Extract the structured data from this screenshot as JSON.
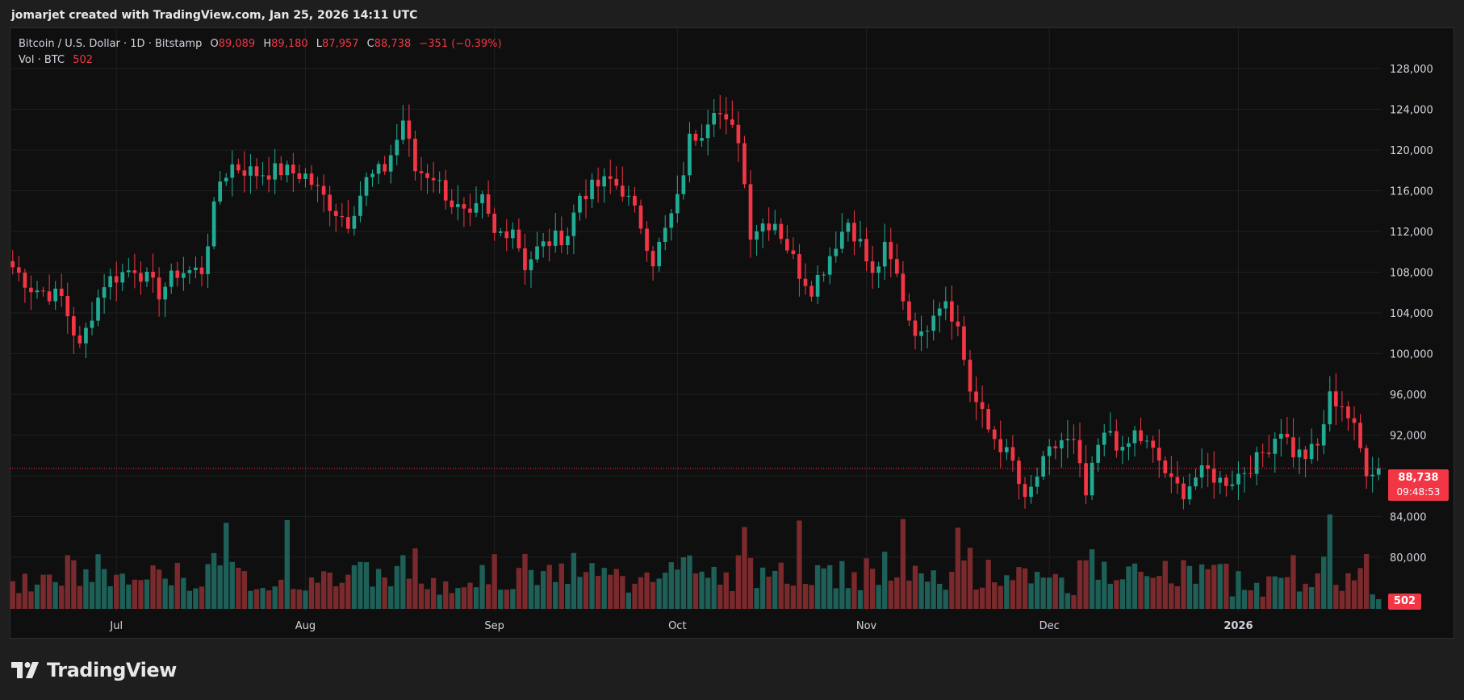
{
  "header": {
    "attribution": "jomarjet created with TradingView.com, Jan 25, 2026 14:11 UTC"
  },
  "legend": {
    "symbol": "Bitcoin / U.S. Dollar · 1D · Bitstamp",
    "open_label": "O",
    "open": "89,089",
    "high_label": "H",
    "high": "89,180",
    "low_label": "L",
    "low": "87,957",
    "close_label": "C",
    "close": "88,738",
    "change": "−351 (−0.39%)",
    "volume_label": "Vol · BTC",
    "volume": "502"
  },
  "price_tag": {
    "price": "88,738",
    "countdown": "09:48:53"
  },
  "volume_tag": "502",
  "brand": {
    "name": "TradingView"
  },
  "colors": {
    "up": "#22ab94",
    "down": "#f23645",
    "up_vol": "#1e5f57",
    "down_vol": "#7a2a2c",
    "background": "#0f0f0f"
  },
  "chart_data": {
    "type": "candlestick",
    "interval": "1D",
    "price_axis_ticks": [
      80000,
      84000,
      88000,
      92000,
      96000,
      100000,
      104000,
      108000,
      112000,
      116000,
      120000,
      124000,
      128000
    ],
    "price_axis_tick_labels": [
      "80,000",
      "84,000",
      "88,000",
      "92,000",
      "96,000",
      "100,000",
      "104,000",
      "108,000",
      "112,000",
      "116,000",
      "120,000",
      "124,000",
      "128,000"
    ],
    "ylim": [
      78500,
      129500
    ],
    "x_tick_labels": [
      {
        "label": "Jul",
        "index": 17,
        "bold": false
      },
      {
        "label": "Aug",
        "index": 48,
        "bold": false
      },
      {
        "label": "Sep",
        "index": 79,
        "bold": false
      },
      {
        "label": "Oct",
        "index": 109,
        "bold": false
      },
      {
        "label": "Nov",
        "index": 140,
        "bold": false
      },
      {
        "label": "Dec",
        "index": 170,
        "bold": false
      },
      {
        "label": "2026",
        "index": 201,
        "bold": true
      }
    ],
    "total_bars": 225,
    "last_price": 88738,
    "series": [
      {
        "name": "BTC/USD",
        "close_path": [
          [
            0,
            108500
          ],
          [
            3,
            106500
          ],
          [
            8,
            105500
          ],
          [
            11,
            100500
          ],
          [
            13,
            104000
          ],
          [
            15,
            107000
          ],
          [
            20,
            108500
          ],
          [
            24,
            106000
          ],
          [
            27,
            108000
          ],
          [
            31,
            108200
          ],
          [
            34,
            117000
          ],
          [
            36,
            118500
          ],
          [
            40,
            117700
          ],
          [
            44,
            118000
          ],
          [
            48,
            117500
          ],
          [
            50,
            116000
          ],
          [
            53,
            114000
          ],
          [
            55,
            113000
          ],
          [
            58,
            117000
          ],
          [
            61,
            118200
          ],
          [
            63,
            121000
          ],
          [
            64,
            123000
          ],
          [
            66,
            118000
          ],
          [
            69,
            117500
          ],
          [
            72,
            114800
          ],
          [
            75,
            113000
          ],
          [
            77,
            115000
          ],
          [
            79,
            111600
          ],
          [
            82,
            112500
          ],
          [
            84,
            108700
          ],
          [
            86,
            110200
          ],
          [
            88,
            111000
          ],
          [
            91,
            111800
          ],
          [
            93,
            115600
          ],
          [
            96,
            116500
          ],
          [
            98,
            117000
          ],
          [
            100,
            116100
          ],
          [
            103,
            112700
          ],
          [
            105,
            109200
          ],
          [
            107,
            112000
          ],
          [
            109,
            115000
          ],
          [
            111,
            121000
          ],
          [
            113,
            122000
          ],
          [
            115,
            124500
          ],
          [
            117,
            122400
          ],
          [
            119,
            121300
          ],
          [
            121,
            112000
          ],
          [
            123,
            112800
          ],
          [
            125,
            113000
          ],
          [
            127,
            110500
          ],
          [
            129,
            108000
          ],
          [
            131,
            106500
          ],
          [
            133,
            108500
          ],
          [
            135,
            111000
          ],
          [
            137,
            113000
          ],
          [
            139,
            110800
          ],
          [
            141,
            107500
          ],
          [
            143,
            110200
          ],
          [
            145,
            107600
          ],
          [
            147,
            103500
          ],
          [
            149,
            101500
          ],
          [
            151,
            104500
          ],
          [
            153,
            105500
          ],
          [
            155,
            102500
          ],
          [
            157,
            96500
          ],
          [
            160,
            92500
          ],
          [
            162,
            91000
          ],
          [
            164,
            89200
          ],
          [
            166,
            85200
          ],
          [
            168,
            88000
          ],
          [
            170,
            90200
          ],
          [
            172,
            91500
          ],
          [
            174,
            91000
          ],
          [
            176,
            86000
          ],
          [
            178,
            90800
          ],
          [
            180,
            92500
          ],
          [
            182,
            90000
          ],
          [
            184,
            92200
          ],
          [
            186,
            91000
          ],
          [
            188,
            89500
          ],
          [
            190,
            87200
          ],
          [
            192,
            86500
          ],
          [
            194,
            87900
          ],
          [
            196,
            88400
          ],
          [
            198,
            87500
          ],
          [
            200,
            87700
          ],
          [
            202,
            88600
          ],
          [
            204,
            89500
          ],
          [
            206,
            91000
          ],
          [
            208,
            92700
          ],
          [
            210,
            90300
          ],
          [
            212,
            90000
          ],
          [
            214,
            90800
          ],
          [
            216,
            95700
          ],
          [
            218,
            95100
          ],
          [
            220,
            92500
          ],
          [
            222,
            88700
          ],
          [
            224,
            88738
          ]
        ]
      }
    ],
    "volume_series": {
      "name": "Vol · BTC",
      "spikes": [
        {
          "index": 35,
          "value": "high"
        },
        {
          "index": 45,
          "value": "high"
        },
        {
          "index": 120,
          "value": "high"
        },
        {
          "index": 129,
          "value": "high"
        },
        {
          "index": 146,
          "value": "high"
        },
        {
          "index": 155,
          "value": "high"
        },
        {
          "index": 216,
          "value": "high"
        }
      ],
      "last": 502
    }
  }
}
